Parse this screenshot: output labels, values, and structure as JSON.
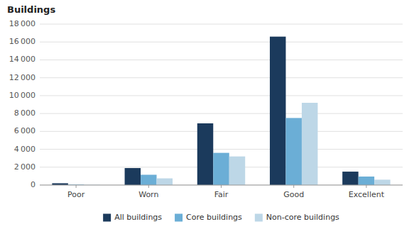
{
  "chart_data": {
    "type": "bar",
    "title": "Buildings",
    "categories": [
      "Poor",
      "Worn",
      "Fair",
      "Good",
      "Excellent"
    ],
    "series": [
      {
        "name": "All buildings",
        "color": "#1b3a5c",
        "values": [
          200,
          1900,
          6900,
          16600,
          1500
        ]
      },
      {
        "name": "Core buildings",
        "color": "#6baed6",
        "values": [
          50,
          1150,
          3600,
          7500,
          950
        ]
      },
      {
        "name": "Non-core buildings",
        "color": "#bdd7e7",
        "values": [
          30,
          750,
          3200,
          9200,
          600
        ]
      }
    ],
    "ylim": [
      0,
      18000
    ],
    "yticks": [
      0,
      {
        "value": 2000,
        "label": "2 000"
      },
      {
        "value": 4000,
        "label": "4 000"
      },
      {
        "value": 6000,
        "label": "6 000"
      },
      {
        "value": 8000,
        "label": "8 000"
      },
      {
        "value": 10000,
        "label": "10 000"
      },
      {
        "value": 12000,
        "label": "12 000"
      },
      {
        "value": 14000,
        "label": "14 000"
      },
      {
        "value": 16000,
        "label": "16 000"
      },
      {
        "value": 18000,
        "label": "18 000"
      }
    ],
    "grid": true,
    "legend": "bottom"
  }
}
